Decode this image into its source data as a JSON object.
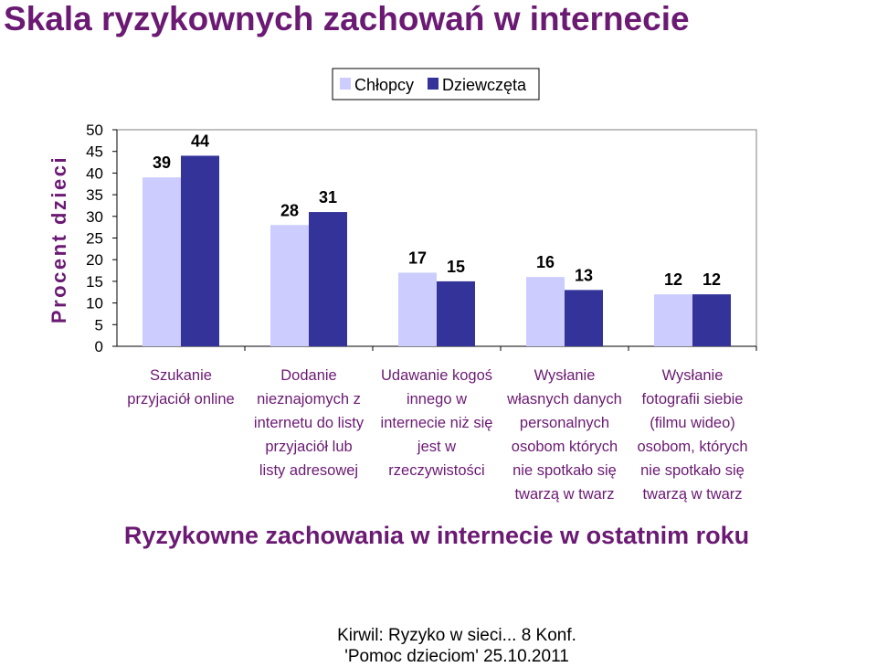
{
  "page": {
    "title": "Skala ryzykownych zachowań w internecie",
    "footer": [
      "Kirwil: Ryzyko w sieci... 8 Konf.",
      "'Pomoc dzieciom' 25.10.2011"
    ]
  },
  "chart_data": {
    "type": "bar",
    "title": "",
    "xlabel": "Ryzykowne zachowania w internecie w ostatnim roku",
    "ylabel": "Procent dzieci",
    "ylim": [
      0,
      50
    ],
    "yticks": [
      0,
      5,
      10,
      15,
      20,
      25,
      30,
      35,
      40,
      45,
      50
    ],
    "grid": false,
    "legend_position": "top-center",
    "categories": [
      [
        "Szukanie",
        "przyjaciół online"
      ],
      [
        "Dodanie",
        "nieznajomych z",
        "internetu do listy",
        "przyjaciół lub",
        "listy adresowej"
      ],
      [
        "Udawanie kogoś",
        "innego w",
        "internecie niż się",
        "jest w",
        "rzeczywistości"
      ],
      [
        "Wysłanie",
        "własnych danych",
        "personalnych",
        "osobom których",
        "nie spotkało się",
        "twarzą w twarz"
      ],
      [
        "Wysłanie",
        "fotografii siebie",
        "(filmu wideo)",
        "osobom, których",
        "nie spotkało się",
        "twarzą w twarz"
      ]
    ],
    "series": [
      {
        "name": "Chłopcy",
        "color": "#ccccff",
        "values": [
          39,
          28,
          17,
          16,
          12
        ]
      },
      {
        "name": "Dziewczęta",
        "color": "#333399",
        "values": [
          44,
          31,
          15,
          13,
          12
        ]
      }
    ],
    "colors": {
      "title": "#6b1a73",
      "axis_label": "#6b1a73",
      "xlabel": "#6b1a73",
      "category_text": "#6b1a73"
    }
  }
}
